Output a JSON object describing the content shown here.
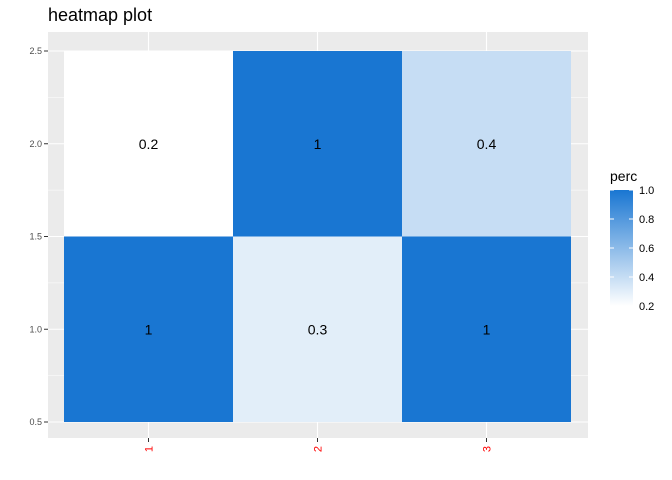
{
  "chart_data": {
    "type": "heatmap",
    "title": "heatmap plot",
    "x_categories": [
      "1",
      "2",
      "3"
    ],
    "x_tick_color": "#ff0000",
    "y_ticks": [
      "0.5",
      "1.0",
      "1.5",
      "2.0",
      "2.5"
    ],
    "ylim": [
      0.5,
      2.5
    ],
    "cells": [
      {
        "x": "1",
        "y": 1,
        "value": 1,
        "label": "1"
      },
      {
        "x": "2",
        "y": 1,
        "value": 0.3,
        "label": "0.3"
      },
      {
        "x": "3",
        "y": 1,
        "value": 1,
        "label": "1"
      },
      {
        "x": "1",
        "y": 2,
        "value": 0.2,
        "label": "0.2"
      },
      {
        "x": "2",
        "y": 2,
        "value": 1,
        "label": "1"
      },
      {
        "x": "3",
        "y": 2,
        "value": 0.4,
        "label": "0.4"
      }
    ],
    "color_scale": {
      "low": "#ffffff",
      "high": "#1976d2",
      "domain": [
        0.2,
        1.0
      ]
    },
    "legend": {
      "title": "perc",
      "ticks": [
        "0.2",
        "0.4",
        "0.6",
        "0.8",
        "1.0"
      ],
      "tick_values": [
        0.2,
        0.4,
        0.6,
        0.8,
        1.0
      ],
      "position": "right"
    },
    "panel_background": "#ebebeb",
    "grid": true
  }
}
